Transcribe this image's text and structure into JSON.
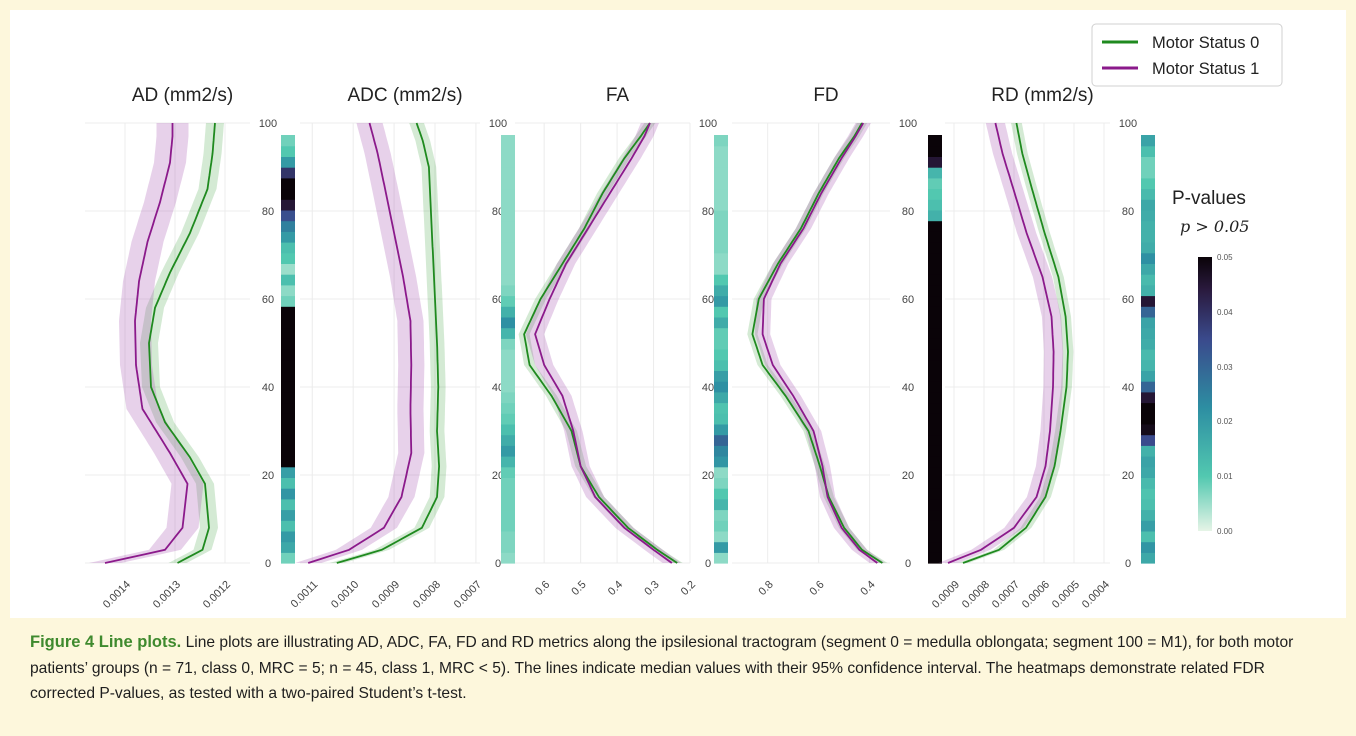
{
  "legend": {
    "items": [
      {
        "label": "Motor Status 0",
        "color": "#1f8a1f"
      },
      {
        "label": "Motor Status 1",
        "color": "#8b1a8b"
      }
    ]
  },
  "colorbar": {
    "title": "P-values",
    "subtitle": "p > 0.05",
    "ticks": [
      "0.05",
      "0.04",
      "0.03",
      "0.02",
      "0.01",
      "0.00"
    ]
  },
  "caption": {
    "lead": "Figure 4 Line plots.",
    "body": "Line plots are illustrating AD, ADC, FA, FD and RD metrics along the ipsilesional tractogram (segment 0 = medulla oblongata; segment 100 = M1), for both motor patients’ groups (n = 71, class 0, MRC = 5; n = 45, class 1, MRC < 5). The lines indicate median values with their 95% confidence interval. The heatmaps demonstrate related FDR corrected P-values, as tested with a two-paired Student’s t-test."
  },
  "chart_data": [
    {
      "type": "line",
      "title": "AD (mm2/s)",
      "y_ticks": [
        "0",
        "20",
        "40",
        "60",
        "80",
        "100"
      ],
      "ylim": [
        0,
        100
      ],
      "x_ticks": [
        "0.0014",
        "0.0013",
        "0.0012"
      ],
      "x_tick_values": [
        0.0014,
        0.0013,
        0.0012
      ],
      "xlim": [
        0.00148,
        0.00115
      ],
      "series": [
        {
          "color": "#1f8a1f",
          "ci": 1.8e-05,
          "points": [
            [
              0,
              0.001295
            ],
            [
              3,
              0.001245
            ],
            [
              8,
              0.001232
            ],
            [
              18,
              0.00124
            ],
            [
              24,
              0.00127
            ],
            [
              32,
              0.00132
            ],
            [
              40,
              0.001348
            ],
            [
              50,
              0.001352
            ],
            [
              58,
              0.00134
            ],
            [
              66,
              0.00131
            ],
            [
              75,
              0.00127
            ],
            [
              85,
              0.001235
            ],
            [
              93,
              0.001225
            ],
            [
              100,
              0.00122
            ]
          ]
        },
        {
          "color": "#8b1a8b",
          "ci": 3.2e-05,
          "points": [
            [
              0,
              0.00144
            ],
            [
              3,
              0.00132
            ],
            [
              8,
              0.001285
            ],
            [
              18,
              0.001275
            ],
            [
              25,
              0.00131
            ],
            [
              35,
              0.001365
            ],
            [
              45,
              0.001378
            ],
            [
              55,
              0.00138
            ],
            [
              64,
              0.001372
            ],
            [
              73,
              0.001355
            ],
            [
              82,
              0.00133
            ],
            [
              91,
              0.00131
            ],
            [
              97,
              0.001305
            ],
            [
              100,
              0.001305
            ]
          ]
        }
      ],
      "pvalue_heatmap": [
        0.008,
        0.017,
        0.02,
        0.012,
        0.019,
        0.012,
        0.021,
        0.012,
        0.019,
        0.05,
        0.05,
        0.05,
        0.05,
        0.05,
        0.05,
        0.05,
        0.05,
        0.05,
        0.05,
        0.05,
        0.05,
        0.05,
        0.05,
        0.05,
        0.008,
        0.006,
        0.012,
        0.005,
        0.01,
        0.012,
        0.02,
        0.025,
        0.034,
        0.045,
        0.05,
        0.05,
        0.039,
        0.02,
        0.01,
        0.008
      ]
    },
    {
      "type": "line",
      "title": "ADC (mm2/s)",
      "y_ticks": [
        "0",
        "20",
        "40",
        "60",
        "80",
        "100"
      ],
      "ylim": [
        0,
        100
      ],
      "x_ticks": [
        "0.0011",
        "0.0010",
        "0.0009",
        "0.0008",
        "0.0007"
      ],
      "x_tick_values": [
        0.0011,
        0.001,
        0.0009,
        0.0008,
        0.0007
      ],
      "xlim": [
        0.00113,
        0.00069
      ],
      "series": [
        {
          "color": "#1f8a1f",
          "ci": 1.8e-05,
          "points": [
            [
              0,
              0.00104
            ],
            [
              3,
              0.00093
            ],
            [
              8,
              0.000832
            ],
            [
              15,
              0.000795
            ],
            [
              22,
              0.00079
            ],
            [
              30,
              0.000795
            ],
            [
              40,
              0.000792
            ],
            [
              50,
              0.000795
            ],
            [
              60,
              0.0008
            ],
            [
              70,
              0.000805
            ],
            [
              80,
              0.00081
            ],
            [
              90,
              0.000815
            ],
            [
              96,
              0.00083
            ],
            [
              100,
              0.000845
            ]
          ]
        },
        {
          "color": "#8b1a8b",
          "ci": 3.2e-05,
          "points": [
            [
              0,
              0.00111
            ],
            [
              3,
              0.00101
            ],
            [
              8,
              0.000925
            ],
            [
              15,
              0.000882
            ],
            [
              25,
              0.000858
            ],
            [
              35,
              0.00086
            ],
            [
              45,
              0.000858
            ],
            [
              55,
              0.00086
            ],
            [
              65,
              0.000878
            ],
            [
              75,
              0.0009
            ],
            [
              85,
              0.000922
            ],
            [
              93,
              0.00094
            ],
            [
              100,
              0.00096
            ]
          ]
        }
      ],
      "pvalue_heatmap": [
        0.006,
        0.007,
        0.007,
        0.008,
        0.008,
        0.008,
        0.008,
        0.008,
        0.009,
        0.014,
        0.02,
        0.016,
        0.012,
        0.009,
        0.008,
        0.007,
        0.006,
        0.006,
        0.006,
        0.006,
        0.007,
        0.014,
        0.022,
        0.015,
        0.009,
        0.007,
        0.006,
        0.006,
        0.006,
        0.006,
        0.006,
        0.006,
        0.006,
        0.006,
        0.006,
        0.006,
        0.006,
        0.006,
        0.006,
        0.006
      ]
    },
    {
      "type": "line",
      "title": "FA",
      "y_ticks": [
        "0",
        "20",
        "40",
        "60",
        "80",
        "100"
      ],
      "ylim": [
        0,
        100
      ],
      "x_ticks": [
        "0.6",
        "0.5",
        "0.4",
        "0.3",
        "0.2"
      ],
      "x_tick_values": [
        0.6,
        0.5,
        0.4,
        0.3,
        0.2
      ],
      "xlim": [
        0.68,
        0.2
      ],
      "series": [
        {
          "color": "#1f8a1f",
          "ci": 0.015,
          "points": [
            [
              0,
              0.235
            ],
            [
              3,
              0.29
            ],
            [
              8,
              0.37
            ],
            [
              15,
              0.45
            ],
            [
              22,
              0.5
            ],
            [
              30,
              0.525
            ],
            [
              38,
              0.58
            ],
            [
              45,
              0.64
            ],
            [
              52,
              0.655
            ],
            [
              60,
              0.61
            ],
            [
              68,
              0.55
            ],
            [
              76,
              0.49
            ],
            [
              84,
              0.44
            ],
            [
              92,
              0.38
            ],
            [
              97,
              0.335
            ],
            [
              100,
              0.31
            ]
          ]
        },
        {
          "color": "#8b1a8b",
          "ci": 0.025,
          "points": [
            [
              0,
              0.25
            ],
            [
              3,
              0.3
            ],
            [
              8,
              0.38
            ],
            [
              15,
              0.46
            ],
            [
              22,
              0.5
            ],
            [
              30,
              0.52
            ],
            [
              38,
              0.55
            ],
            [
              45,
              0.6
            ],
            [
              52,
              0.625
            ],
            [
              60,
              0.585
            ],
            [
              68,
              0.54
            ],
            [
              76,
              0.48
            ],
            [
              84,
              0.42
            ],
            [
              92,
              0.36
            ],
            [
              97,
              0.325
            ],
            [
              100,
              0.31
            ]
          ]
        }
      ],
      "pvalue_heatmap": [
        0.006,
        0.02,
        0.006,
        0.008,
        0.007,
        0.014,
        0.01,
        0.007,
        0.006,
        0.021,
        0.024,
        0.03,
        0.02,
        0.012,
        0.011,
        0.017,
        0.022,
        0.019,
        0.012,
        0.01,
        0.009,
        0.009,
        0.016,
        0.01,
        0.02,
        0.016,
        0.01,
        0.006,
        0.006,
        0.007,
        0.007,
        0.007,
        0.007,
        0.006,
        0.006,
        0.006,
        0.006,
        0.006,
        0.006,
        0.007
      ]
    },
    {
      "type": "line",
      "title": "FD",
      "y_ticks": [
        "0",
        "20",
        "40",
        "60",
        "80",
        "100"
      ],
      "ylim": [
        0,
        100
      ],
      "x_ticks": [
        "0.8",
        "0.6",
        "0.4"
      ],
      "x_tick_values": [
        0.8,
        0.6,
        0.4
      ],
      "xlim": [
        0.94,
        0.32
      ],
      "series": [
        {
          "color": "#1f8a1f",
          "ci": 0.02,
          "points": [
            [
              0,
              0.35
            ],
            [
              3,
              0.43
            ],
            [
              8,
              0.5
            ],
            [
              15,
              0.56
            ],
            [
              22,
              0.595
            ],
            [
              30,
              0.64
            ],
            [
              38,
              0.73
            ],
            [
              45,
              0.82
            ],
            [
              52,
              0.86
            ],
            [
              60,
              0.835
            ],
            [
              68,
              0.76
            ],
            [
              76,
              0.67
            ],
            [
              84,
              0.6
            ],
            [
              92,
              0.52
            ],
            [
              97,
              0.46
            ],
            [
              100,
              0.43
            ]
          ]
        },
        {
          "color": "#8b1a8b",
          "ci": 0.03,
          "points": [
            [
              0,
              0.37
            ],
            [
              3,
              0.44
            ],
            [
              8,
              0.51
            ],
            [
              15,
              0.565
            ],
            [
              22,
              0.585
            ],
            [
              30,
              0.62
            ],
            [
              38,
              0.7
            ],
            [
              45,
              0.78
            ],
            [
              52,
              0.82
            ],
            [
              60,
              0.815
            ],
            [
              68,
              0.75
            ],
            [
              76,
              0.66
            ],
            [
              84,
              0.59
            ],
            [
              92,
              0.51
            ],
            [
              97,
              0.455
            ],
            [
              100,
              0.425
            ]
          ]
        }
      ],
      "pvalue_heatmap": [
        0.05,
        0.05,
        0.05,
        0.05,
        0.05,
        0.05,
        0.05,
        0.05,
        0.05,
        0.05,
        0.05,
        0.05,
        0.05,
        0.05,
        0.05,
        0.05,
        0.05,
        0.05,
        0.05,
        0.05,
        0.05,
        0.05,
        0.05,
        0.05,
        0.05,
        0.05,
        0.05,
        0.05,
        0.05,
        0.05,
        0.05,
        0.05,
        0.015,
        0.012,
        0.01,
        0.009,
        0.014,
        0.045,
        0.05,
        0.05
      ]
    },
    {
      "type": "line",
      "title": "RD (mm2/s)",
      "y_ticks": [
        "0",
        "20",
        "40",
        "60",
        "80",
        "100"
      ],
      "ylim": [
        0,
        100
      ],
      "x_ticks": [
        "0.0009",
        "0.0008",
        "0.0007",
        "0.0006",
        "0.0005",
        "0.0004"
      ],
      "x_tick_values": [
        0.0009,
        0.0008,
        0.0007,
        0.0006,
        0.0005,
        0.0004
      ],
      "xlim": [
        0.00093,
        0.00038
      ],
      "series": [
        {
          "color": "#1f8a1f",
          "ci": 1.8e-05,
          "points": [
            [
              0,
              0.00087
            ],
            [
              3,
              0.00075
            ],
            [
              8,
              0.00066
            ],
            [
              15,
              0.000595
            ],
            [
              22,
              0.000565
            ],
            [
              30,
              0.000545
            ],
            [
              40,
              0.000525
            ],
            [
              48,
              0.00052
            ],
            [
              56,
              0.000528
            ],
            [
              65,
              0.000552
            ],
            [
              75,
              0.000598
            ],
            [
              85,
              0.00064
            ],
            [
              93,
              0.000672
            ],
            [
              100,
              0.000692
            ]
          ]
        },
        {
          "color": "#8b1a8b",
          "ci": 3.2e-05,
          "points": [
            [
              0,
              0.00092
            ],
            [
              3,
              0.00081
            ],
            [
              8,
              0.0007
            ],
            [
              15,
              0.000625
            ],
            [
              22,
              0.000595
            ],
            [
              30,
              0.00058
            ],
            [
              40,
              0.00057
            ],
            [
              48,
              0.000568
            ],
            [
              56,
              0.000575
            ],
            [
              65,
              0.000605
            ],
            [
              75,
              0.000658
            ],
            [
              85,
              0.000702
            ],
            [
              93,
              0.000738
            ],
            [
              100,
              0.000762
            ]
          ]
        }
      ],
      "pvalue_heatmap": [
        0.017,
        0.021,
        0.012,
        0.019,
        0.015,
        0.012,
        0.011,
        0.013,
        0.017,
        0.018,
        0.015,
        0.035,
        0.048,
        0.05,
        0.05,
        0.045,
        0.03,
        0.018,
        0.014,
        0.013,
        0.016,
        0.017,
        0.018,
        0.03,
        0.045,
        0.015,
        0.013,
        0.017,
        0.022,
        0.016,
        0.015,
        0.015,
        0.016,
        0.017,
        0.013,
        0.01,
        0.008,
        0.008,
        0.012,
        0.018
      ]
    }
  ]
}
